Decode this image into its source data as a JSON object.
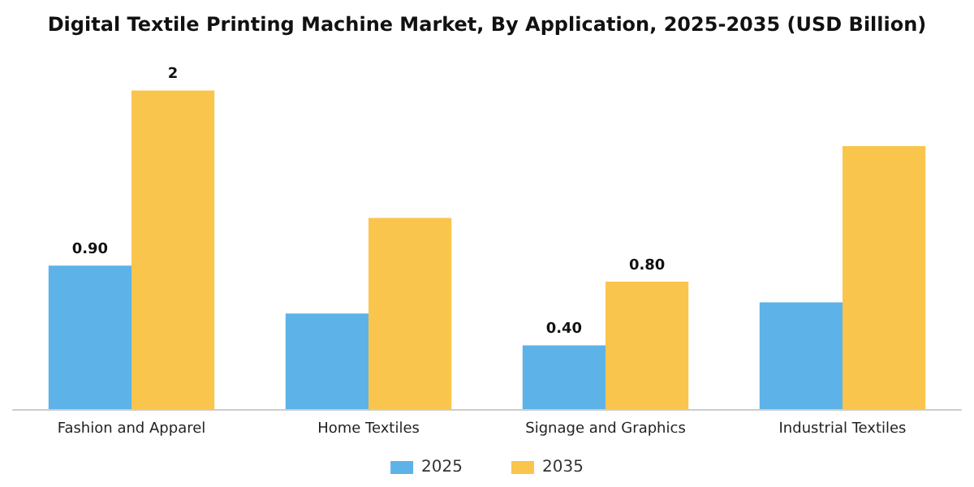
{
  "chart_data": {
    "type": "bar",
    "title": "Digital Textile Printing Machine Market, By Application, 2025-2035 (USD Billion)",
    "categories": [
      "Fashion and Apparel",
      "Home Textiles",
      "Signage and Graphics",
      "Industrial Textiles"
    ],
    "series": [
      {
        "name": "2025",
        "color": "#5db3e8",
        "values": [
          0.9,
          0.6,
          0.4,
          0.67
        ],
        "value_labels": [
          "0.90",
          null,
          "0.40",
          null
        ]
      },
      {
        "name": "2035",
        "color": "#f9c54c",
        "values": [
          2,
          1.2,
          0.8,
          1.65
        ],
        "value_labels": [
          "2",
          null,
          "0.80",
          null
        ]
      }
    ],
    "legend": "bottom"
  }
}
